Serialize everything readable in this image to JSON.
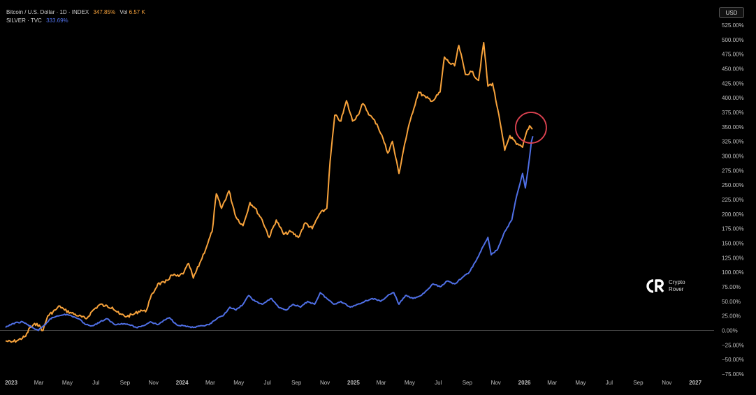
{
  "legend": {
    "btc_title": "Bitcoin / U.S. Dollar · 1D · INDEX",
    "btc_value": "347.85%",
    "btc_vol_label": "Vol",
    "btc_vol_value": "6.57 K",
    "silver_title": "SILVER · TVC",
    "silver_value": "333.69%"
  },
  "currency_button": "USD",
  "logo": {
    "line1": "Crypto",
    "line2": "Rover",
    "icon": "cr-logo-icon"
  },
  "colors": {
    "btc": "#F7A23B",
    "silver": "#4F6FE5",
    "highlight": "#E04352",
    "axis_text": "#BFBFBF",
    "zero_line": "#5a5a5a"
  },
  "chart_data": {
    "type": "line",
    "y_unit": "%",
    "ylim": [
      -25,
      525
    ],
    "y_ticks": [
      "525.00%",
      "500.00%",
      "475.00%",
      "450.00%",
      "425.00%",
      "400.00%",
      "375.00%",
      "350.00%",
      "325.00%",
      "300.00%",
      "275.00%",
      "250.00%",
      "225.00%",
      "200.00%",
      "175.00%",
      "150.00%",
      "125.00%",
      "100.00%",
      "75.00%",
      "50.00%",
      "25.00%",
      "0.00%",
      "−25.00%",
      "−50.00%",
      "−75.00%"
    ],
    "x_ticks": [
      {
        "label": "2023",
        "x": "2023-01",
        "bold": true
      },
      {
        "label": "Mar",
        "x": "2023-03"
      },
      {
        "label": "May",
        "x": "2023-05"
      },
      {
        "label": "Jul",
        "x": "2023-07"
      },
      {
        "label": "Sep",
        "x": "2023-09"
      },
      {
        "label": "Nov",
        "x": "2023-11"
      },
      {
        "label": "2024",
        "x": "2024-01",
        "bold": true
      },
      {
        "label": "Mar",
        "x": "2024-03"
      },
      {
        "label": "May",
        "x": "2024-05"
      },
      {
        "label": "Jul",
        "x": "2024-07"
      },
      {
        "label": "Sep",
        "x": "2024-09"
      },
      {
        "label": "Nov",
        "x": "2024-11"
      },
      {
        "label": "2025",
        "x": "2025-01",
        "bold": true
      },
      {
        "label": "Mar",
        "x": "2025-03"
      },
      {
        "label": "May",
        "x": "2025-05"
      },
      {
        "label": "Jul",
        "x": "2025-07"
      },
      {
        "label": "Sep",
        "x": "2025-09"
      },
      {
        "label": "Nov",
        "x": "2025-11"
      },
      {
        "label": "2026",
        "x": "2026-01",
        "bold": true
      },
      {
        "label": "Mar",
        "x": "2026-03"
      },
      {
        "label": "May",
        "x": "2026-05"
      },
      {
        "label": "Jul",
        "x": "2026-07"
      },
      {
        "label": "Sep",
        "x": "2026-09"
      },
      {
        "label": "Nov",
        "x": "2026-11"
      },
      {
        "label": "2027",
        "x": "2027-01",
        "bold": true
      }
    ],
    "xlim": [
      "2022-12-20",
      "2027-02-10"
    ],
    "series": [
      {
        "name": "Bitcoin / U.S. Dollar",
        "color": "#F7A23B",
        "points": [
          [
            "2022-12-20",
            -18
          ],
          [
            "2023-01-01",
            -20
          ],
          [
            "2023-01-15",
            -17
          ],
          [
            "2023-02-01",
            -10
          ],
          [
            "2023-02-10",
            5
          ],
          [
            "2023-02-25",
            12
          ],
          [
            "2023-03-10",
            0
          ],
          [
            "2023-03-20",
            25
          ],
          [
            "2023-04-05",
            35
          ],
          [
            "2023-04-15",
            42
          ],
          [
            "2023-04-25",
            35
          ],
          [
            "2023-05-10",
            30
          ],
          [
            "2023-05-25",
            25
          ],
          [
            "2023-06-10",
            20
          ],
          [
            "2023-06-25",
            35
          ],
          [
            "2023-07-10",
            45
          ],
          [
            "2023-07-20",
            42
          ],
          [
            "2023-08-05",
            40
          ],
          [
            "2023-08-20",
            28
          ],
          [
            "2023-09-05",
            24
          ],
          [
            "2023-09-20",
            28
          ],
          [
            "2023-10-05",
            35
          ],
          [
            "2023-10-15",
            32
          ],
          [
            "2023-10-25",
            55
          ],
          [
            "2023-11-10",
            80
          ],
          [
            "2023-11-25",
            82
          ],
          [
            "2023-12-10",
            95
          ],
          [
            "2023-12-25",
            93
          ],
          [
            "2024-01-05",
            100
          ],
          [
            "2024-01-15",
            115
          ],
          [
            "2024-01-25",
            90
          ],
          [
            "2024-02-10",
            120
          ],
          [
            "2024-02-25",
            150
          ],
          [
            "2024-03-05",
            170
          ],
          [
            "2024-03-14",
            235
          ],
          [
            "2024-03-25",
            210
          ],
          [
            "2024-04-10",
            240
          ],
          [
            "2024-04-25",
            195
          ],
          [
            "2024-05-10",
            180
          ],
          [
            "2024-05-25",
            220
          ],
          [
            "2024-06-05",
            210
          ],
          [
            "2024-06-20",
            190
          ],
          [
            "2024-07-05",
            160
          ],
          [
            "2024-07-20",
            190
          ],
          [
            "2024-08-05",
            165
          ],
          [
            "2024-08-20",
            170
          ],
          [
            "2024-09-05",
            160
          ],
          [
            "2024-09-20",
            185
          ],
          [
            "2024-10-05",
            175
          ],
          [
            "2024-10-20",
            200
          ],
          [
            "2024-11-05",
            210
          ],
          [
            "2024-11-12",
            290
          ],
          [
            "2024-11-22",
            370
          ],
          [
            "2024-12-05",
            360
          ],
          [
            "2024-12-17",
            395
          ],
          [
            "2024-12-30",
            360
          ],
          [
            "2025-01-10",
            370
          ],
          [
            "2025-01-21",
            390
          ],
          [
            "2025-02-05",
            370
          ],
          [
            "2025-02-20",
            355
          ],
          [
            "2025-03-05",
            330
          ],
          [
            "2025-03-15",
            305
          ],
          [
            "2025-03-25",
            325
          ],
          [
            "2025-04-08",
            270
          ],
          [
            "2025-04-20",
            320
          ],
          [
            "2025-05-05",
            370
          ],
          [
            "2025-05-20",
            410
          ],
          [
            "2025-06-05",
            400
          ],
          [
            "2025-06-20",
            395
          ],
          [
            "2025-07-05",
            410
          ],
          [
            "2025-07-14",
            470
          ],
          [
            "2025-07-25",
            460
          ],
          [
            "2025-08-05",
            455
          ],
          [
            "2025-08-14",
            490
          ],
          [
            "2025-08-28",
            440
          ],
          [
            "2025-09-10",
            445
          ],
          [
            "2025-09-25",
            430
          ],
          [
            "2025-10-06",
            495
          ],
          [
            "2025-10-15",
            420
          ],
          [
            "2025-10-25",
            425
          ],
          [
            "2025-11-05",
            380
          ],
          [
            "2025-11-20",
            310
          ],
          [
            "2025-12-01",
            335
          ],
          [
            "2025-12-15",
            320
          ],
          [
            "2025-12-28",
            315
          ],
          [
            "2026-01-05",
            340
          ],
          [
            "2026-01-12",
            352
          ],
          [
            "2026-01-18",
            346
          ]
        ]
      },
      {
        "name": "SILVER",
        "color": "#4F6FE5",
        "points": [
          [
            "2022-12-20",
            5
          ],
          [
            "2023-01-05",
            12
          ],
          [
            "2023-01-25",
            15
          ],
          [
            "2023-02-15",
            5
          ],
          [
            "2023-02-28",
            0
          ],
          [
            "2023-03-15",
            10
          ],
          [
            "2023-03-25",
            20
          ],
          [
            "2023-04-10",
            25
          ],
          [
            "2023-04-25",
            28
          ],
          [
            "2023-05-10",
            25
          ],
          [
            "2023-05-25",
            20
          ],
          [
            "2023-06-10",
            10
          ],
          [
            "2023-06-25",
            8
          ],
          [
            "2023-07-10",
            15
          ],
          [
            "2023-07-25",
            20
          ],
          [
            "2023-08-10",
            10
          ],
          [
            "2023-08-25",
            12
          ],
          [
            "2023-09-10",
            10
          ],
          [
            "2023-09-25",
            5
          ],
          [
            "2023-10-10",
            8
          ],
          [
            "2023-10-25",
            15
          ],
          [
            "2023-11-10",
            10
          ],
          [
            "2023-11-25",
            18
          ],
          [
            "2023-12-05",
            22
          ],
          [
            "2023-12-20",
            10
          ],
          [
            "2024-01-05",
            8
          ],
          [
            "2024-01-25",
            5
          ],
          [
            "2024-02-15",
            8
          ],
          [
            "2024-02-28",
            10
          ],
          [
            "2024-03-15",
            20
          ],
          [
            "2024-03-28",
            25
          ],
          [
            "2024-04-12",
            40
          ],
          [
            "2024-04-25",
            35
          ],
          [
            "2024-05-10",
            45
          ],
          [
            "2024-05-22",
            60
          ],
          [
            "2024-06-05",
            50
          ],
          [
            "2024-06-20",
            45
          ],
          [
            "2024-07-10",
            55
          ],
          [
            "2024-07-25",
            40
          ],
          [
            "2024-08-10",
            35
          ],
          [
            "2024-08-25",
            45
          ],
          [
            "2024-09-10",
            40
          ],
          [
            "2024-09-25",
            50
          ],
          [
            "2024-10-10",
            45
          ],
          [
            "2024-10-22",
            65
          ],
          [
            "2024-11-05",
            55
          ],
          [
            "2024-11-20",
            45
          ],
          [
            "2024-12-05",
            50
          ],
          [
            "2024-12-25",
            40
          ],
          [
            "2025-01-10",
            45
          ],
          [
            "2025-01-25",
            50
          ],
          [
            "2025-02-10",
            55
          ],
          [
            "2025-02-28",
            50
          ],
          [
            "2025-03-15",
            60
          ],
          [
            "2025-03-28",
            65
          ],
          [
            "2025-04-08",
            45
          ],
          [
            "2025-04-22",
            60
          ],
          [
            "2025-05-08",
            55
          ],
          [
            "2025-05-25",
            60
          ],
          [
            "2025-06-08",
            70
          ],
          [
            "2025-06-20",
            80
          ],
          [
            "2025-07-05",
            75
          ],
          [
            "2025-07-20",
            85
          ],
          [
            "2025-08-05",
            80
          ],
          [
            "2025-08-20",
            90
          ],
          [
            "2025-09-05",
            100
          ],
          [
            "2025-09-20",
            120
          ],
          [
            "2025-10-05",
            145
          ],
          [
            "2025-10-15",
            160
          ],
          [
            "2025-10-22",
            130
          ],
          [
            "2025-11-05",
            140
          ],
          [
            "2025-11-20",
            170
          ],
          [
            "2025-12-05",
            190
          ],
          [
            "2025-12-15",
            230
          ],
          [
            "2025-12-28",
            270
          ],
          [
            "2026-01-03",
            245
          ],
          [
            "2026-01-10",
            285
          ],
          [
            "2026-01-16",
            325
          ],
          [
            "2026-01-19",
            334
          ]
        ]
      }
    ],
    "annotations": [
      {
        "type": "circle",
        "x": "2026-01-12",
        "y": 345,
        "note": "highlight"
      }
    ],
    "grid": false,
    "legend_position": "top-left"
  }
}
